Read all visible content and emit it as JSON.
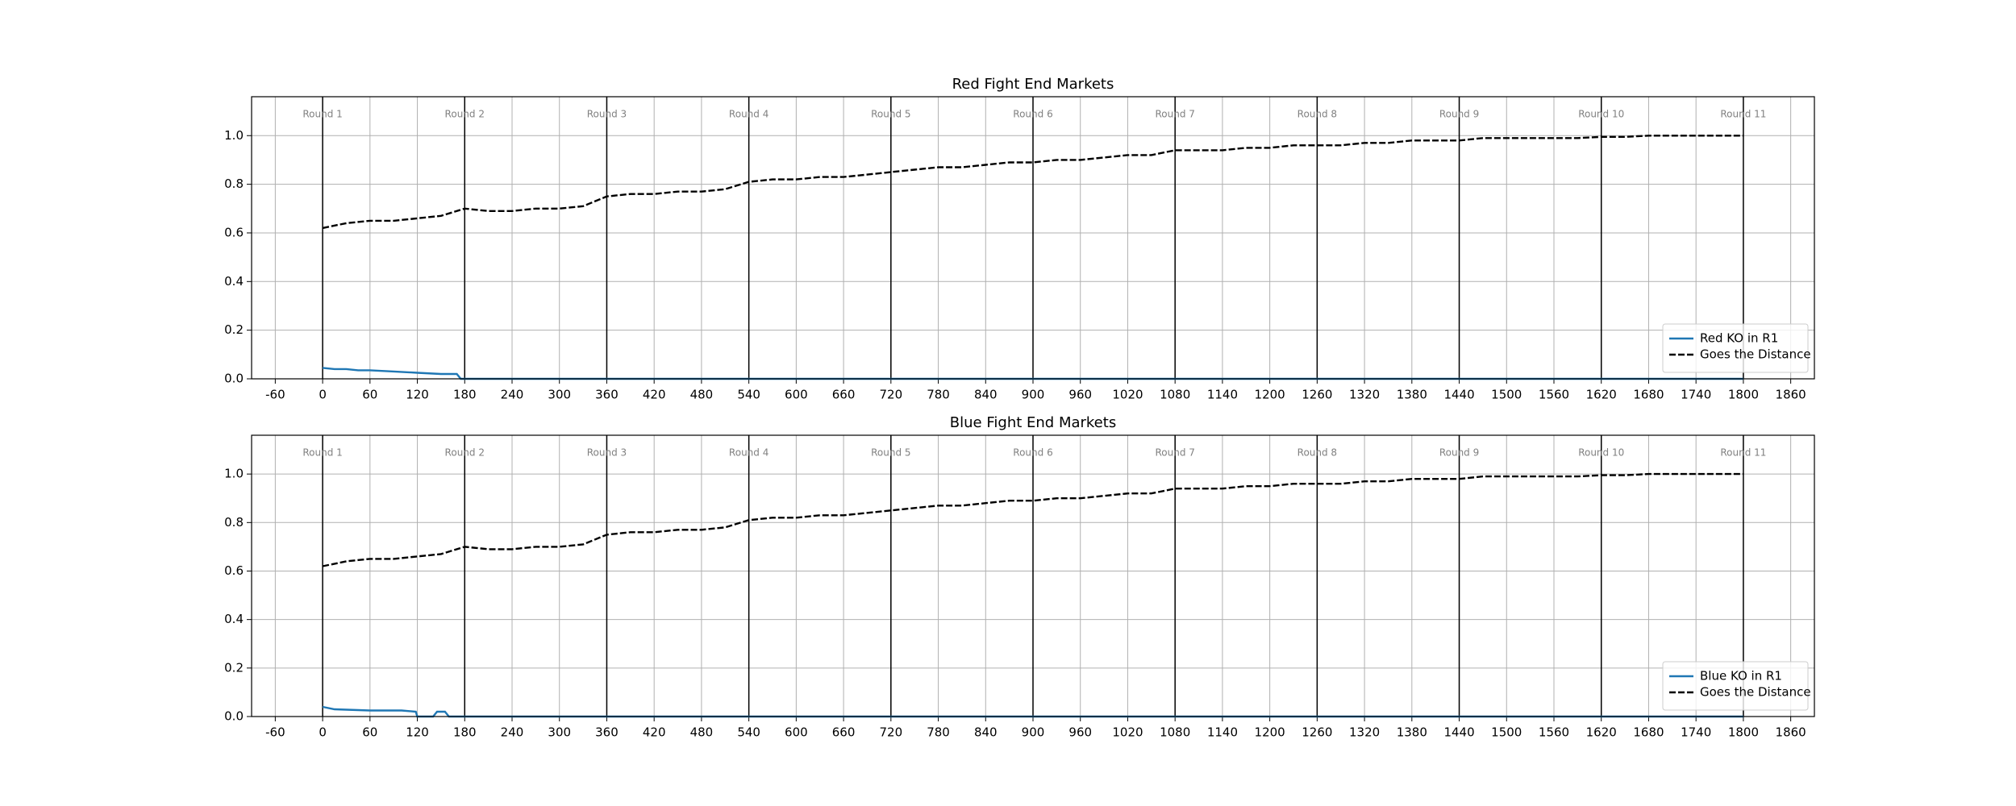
{
  "chart_data": [
    {
      "type": "line",
      "title": "Red Fight End Markets",
      "xlim": [
        -90,
        1890
      ],
      "ylim": [
        0,
        1.16
      ],
      "xticks": [
        -60,
        0,
        60,
        120,
        180,
        240,
        300,
        360,
        420,
        480,
        540,
        600,
        660,
        720,
        780,
        840,
        900,
        960,
        1020,
        1080,
        1140,
        1200,
        1260,
        1320,
        1380,
        1440,
        1500,
        1560,
        1620,
        1680,
        1740,
        1800,
        1860
      ],
      "yticks": [
        {
          "value": 0,
          "label": "0.0"
        },
        0.2,
        0.4,
        0.6,
        0.8,
        {
          "value": 1,
          "label": "1.0"
        }
      ],
      "grid": true,
      "legend": "lower right",
      "rounds": [
        {
          "value": 0,
          "label": "Round 1"
        },
        {
          "value": 180,
          "label": "Round 2"
        },
        {
          "value": 360,
          "label": "Round 3"
        },
        {
          "value": 540,
          "label": "Round 4"
        },
        {
          "value": 720,
          "label": "Round 5"
        },
        {
          "value": 900,
          "label": "Round 6"
        },
        {
          "value": 1080,
          "label": "Round 7"
        },
        {
          "value": 1260,
          "label": "Round 8"
        },
        {
          "value": 1440,
          "label": "Round 9"
        },
        {
          "value": 1620,
          "label": "Round 10"
        },
        {
          "value": 1800,
          "label": "Round 11"
        }
      ],
      "series": [
        {
          "name": "Red KO in R1",
          "color": "#1f77b4",
          "dash": false,
          "x": [
            0,
            15,
            30,
            45,
            60,
            90,
            120,
            150,
            170,
            175,
            1800
          ],
          "values": [
            0.045,
            0.04,
            0.04,
            0.035,
            0.035,
            0.03,
            0.025,
            0.02,
            0.02,
            0,
            0
          ]
        },
        {
          "name": "Goes the Distance",
          "color": "#000000",
          "dash": true,
          "x": [
            0,
            30,
            60,
            90,
            120,
            150,
            180,
            210,
            240,
            270,
            300,
            330,
            360,
            390,
            420,
            450,
            480,
            510,
            540,
            570,
            600,
            630,
            660,
            690,
            720,
            750,
            780,
            810,
            840,
            870,
            900,
            930,
            960,
            990,
            1020,
            1050,
            1080,
            1110,
            1140,
            1170,
            1200,
            1230,
            1260,
            1290,
            1320,
            1350,
            1380,
            1410,
            1440,
            1470,
            1500,
            1530,
            1560,
            1590,
            1620,
            1650,
            1680,
            1710,
            1740,
            1770,
            1800
          ],
          "values": [
            0.62,
            0.64,
            0.65,
            0.65,
            0.66,
            0.67,
            0.7,
            0.69,
            0.69,
            0.7,
            0.7,
            0.71,
            0.75,
            0.76,
            0.76,
            0.77,
            0.77,
            0.78,
            0.81,
            0.82,
            0.82,
            0.83,
            0.83,
            0.84,
            0.85,
            0.86,
            0.87,
            0.87,
            0.88,
            0.89,
            0.89,
            0.9,
            0.9,
            0.91,
            0.92,
            0.92,
            0.94,
            0.94,
            0.94,
            0.95,
            0.95,
            0.96,
            0.96,
            0.96,
            0.97,
            0.97,
            0.98,
            0.98,
            0.98,
            0.99,
            0.99,
            0.99,
            0.99,
            0.99,
            0.995,
            0.995,
            1,
            1,
            1,
            1,
            1
          ]
        }
      ]
    },
    {
      "type": "line",
      "title": "Blue Fight End Markets",
      "xlim": [
        -90,
        1890
      ],
      "ylim": [
        0,
        1.16
      ],
      "xticks": [
        -60,
        0,
        60,
        120,
        180,
        240,
        300,
        360,
        420,
        480,
        540,
        600,
        660,
        720,
        780,
        840,
        900,
        960,
        1020,
        1080,
        1140,
        1200,
        1260,
        1320,
        1380,
        1440,
        1500,
        1560,
        1620,
        1680,
        1740,
        1800,
        1860
      ],
      "yticks": [
        {
          "value": 0,
          "label": "0.0"
        },
        0.2,
        0.4,
        0.6,
        0.8,
        {
          "value": 1,
          "label": "1.0"
        }
      ],
      "grid": true,
      "legend": "lower right",
      "rounds": [
        {
          "value": 0,
          "label": "Round 1"
        },
        {
          "value": 180,
          "label": "Round 2"
        },
        {
          "value": 360,
          "label": "Round 3"
        },
        {
          "value": 540,
          "label": "Round 4"
        },
        {
          "value": 720,
          "label": "Round 5"
        },
        {
          "value": 900,
          "label": "Round 6"
        },
        {
          "value": 1080,
          "label": "Round 7"
        },
        {
          "value": 1260,
          "label": "Round 8"
        },
        {
          "value": 1440,
          "label": "Round 9"
        },
        {
          "value": 1620,
          "label": "Round 10"
        },
        {
          "value": 1800,
          "label": "Round 11"
        }
      ],
      "series": [
        {
          "name": "Blue KO in R1",
          "color": "#1f77b4",
          "dash": false,
          "x": [
            0,
            15,
            60,
            100,
            118,
            120,
            140,
            145,
            155,
            160,
            1800
          ],
          "values": [
            0.04,
            0.03,
            0.025,
            0.025,
            0.02,
            0,
            0,
            0.02,
            0.02,
            0,
            0
          ]
        },
        {
          "name": "Goes the Distance",
          "color": "#000000",
          "dash": true,
          "x": [
            0,
            30,
            60,
            90,
            120,
            150,
            180,
            210,
            240,
            270,
            300,
            330,
            360,
            390,
            420,
            450,
            480,
            510,
            540,
            570,
            600,
            630,
            660,
            690,
            720,
            750,
            780,
            810,
            840,
            870,
            900,
            930,
            960,
            990,
            1020,
            1050,
            1080,
            1110,
            1140,
            1170,
            1200,
            1230,
            1260,
            1290,
            1320,
            1350,
            1380,
            1410,
            1440,
            1470,
            1500,
            1530,
            1560,
            1590,
            1620,
            1650,
            1680,
            1710,
            1740,
            1770,
            1800
          ],
          "values": [
            0.62,
            0.64,
            0.65,
            0.65,
            0.66,
            0.67,
            0.7,
            0.69,
            0.69,
            0.7,
            0.7,
            0.71,
            0.75,
            0.76,
            0.76,
            0.77,
            0.77,
            0.78,
            0.81,
            0.82,
            0.82,
            0.83,
            0.83,
            0.84,
            0.85,
            0.86,
            0.87,
            0.87,
            0.88,
            0.89,
            0.89,
            0.9,
            0.9,
            0.91,
            0.92,
            0.92,
            0.94,
            0.94,
            0.94,
            0.95,
            0.95,
            0.96,
            0.96,
            0.96,
            0.97,
            0.97,
            0.98,
            0.98,
            0.98,
            0.99,
            0.99,
            0.99,
            0.99,
            0.99,
            0.995,
            0.995,
            1,
            1,
            1,
            1,
            1
          ]
        }
      ]
    }
  ]
}
